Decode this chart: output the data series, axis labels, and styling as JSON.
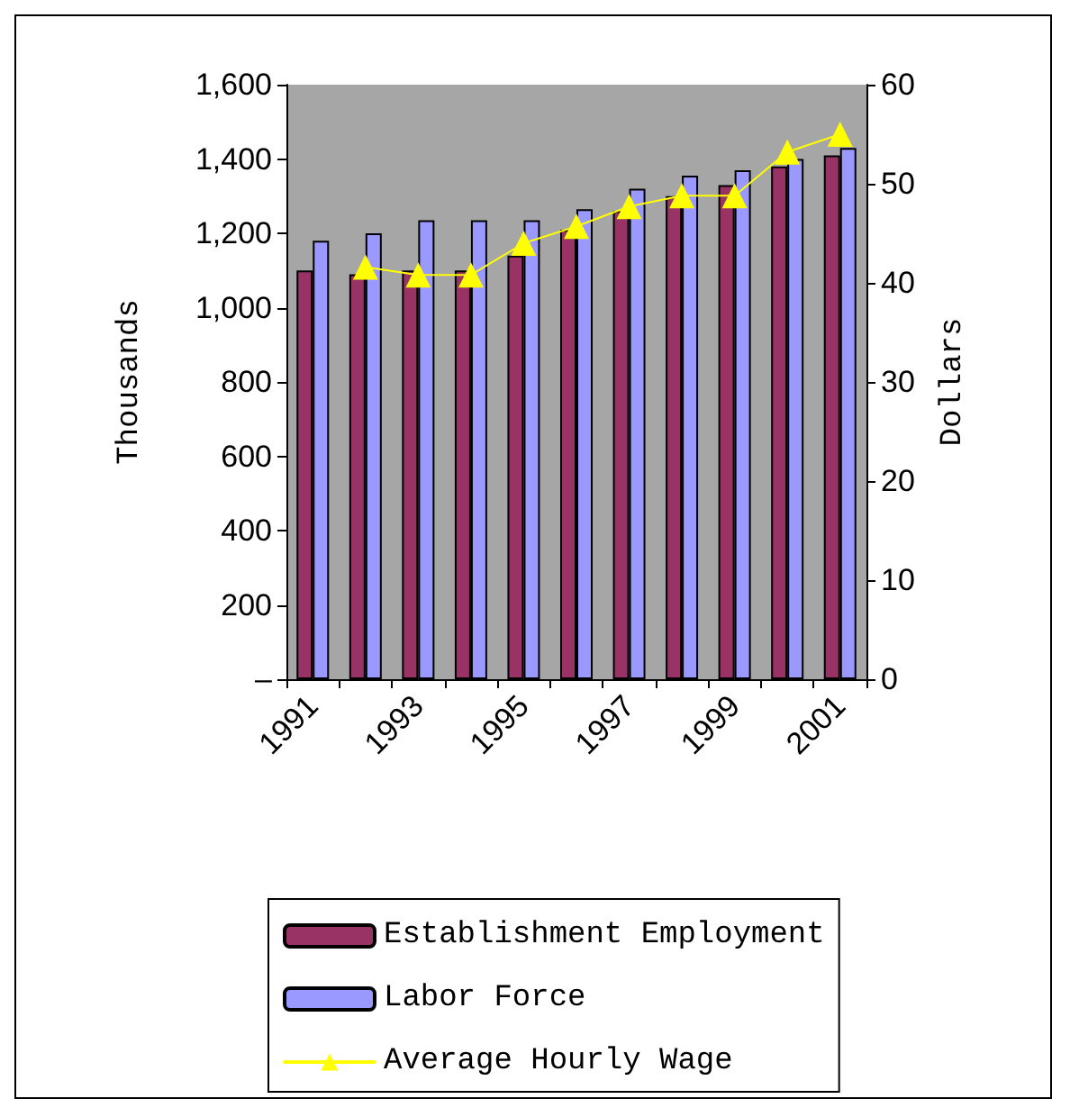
{
  "chart_data": {
    "type": "bar",
    "categories": [
      "1991",
      null,
      "1993",
      null,
      "1995",
      null,
      "1997",
      null,
      "1999",
      null,
      "2001"
    ],
    "series": [
      {
        "name": "Establishment Employment",
        "color": "#993366",
        "values": [
          1100,
          1090,
          1100,
          1100,
          1140,
          1210,
          1260,
          1300,
          1330,
          1380,
          1410
        ]
      },
      {
        "name": "Labor Force",
        "color": "#9999ff",
        "values": [
          1180,
          1200,
          1235,
          1235,
          1235,
          1265,
          1320,
          1355,
          1370,
          1400,
          1430
        ]
      },
      {
        "name": "Average Hourly Wage",
        "type": "line",
        "axis": "y2",
        "color": "#ffff00",
        "marker": "triangle",
        "values": [
          null,
          41.6,
          40.8,
          40.8,
          44.0,
          45.7,
          47.7,
          48.8,
          48.8,
          53.2,
          55.0
        ]
      }
    ],
    "ylabel": "Thousands",
    "y2label": "Dollars",
    "ylim": [
      0,
      1600
    ],
    "yticks": [
      {
        "value": 0,
        "label": "–"
      },
      200,
      400,
      600,
      800,
      {
        "value": 1000,
        "label": "1,000"
      },
      {
        "value": 1200,
        "label": "1,200"
      },
      {
        "value": 1400,
        "label": "1,400"
      },
      {
        "value": 1600,
        "label": "1,600"
      }
    ],
    "y2lim": [
      0,
      60
    ],
    "y2ticks": [
      0,
      10,
      20,
      30,
      40,
      50,
      60
    ],
    "grid": false,
    "legend": "bottom"
  }
}
